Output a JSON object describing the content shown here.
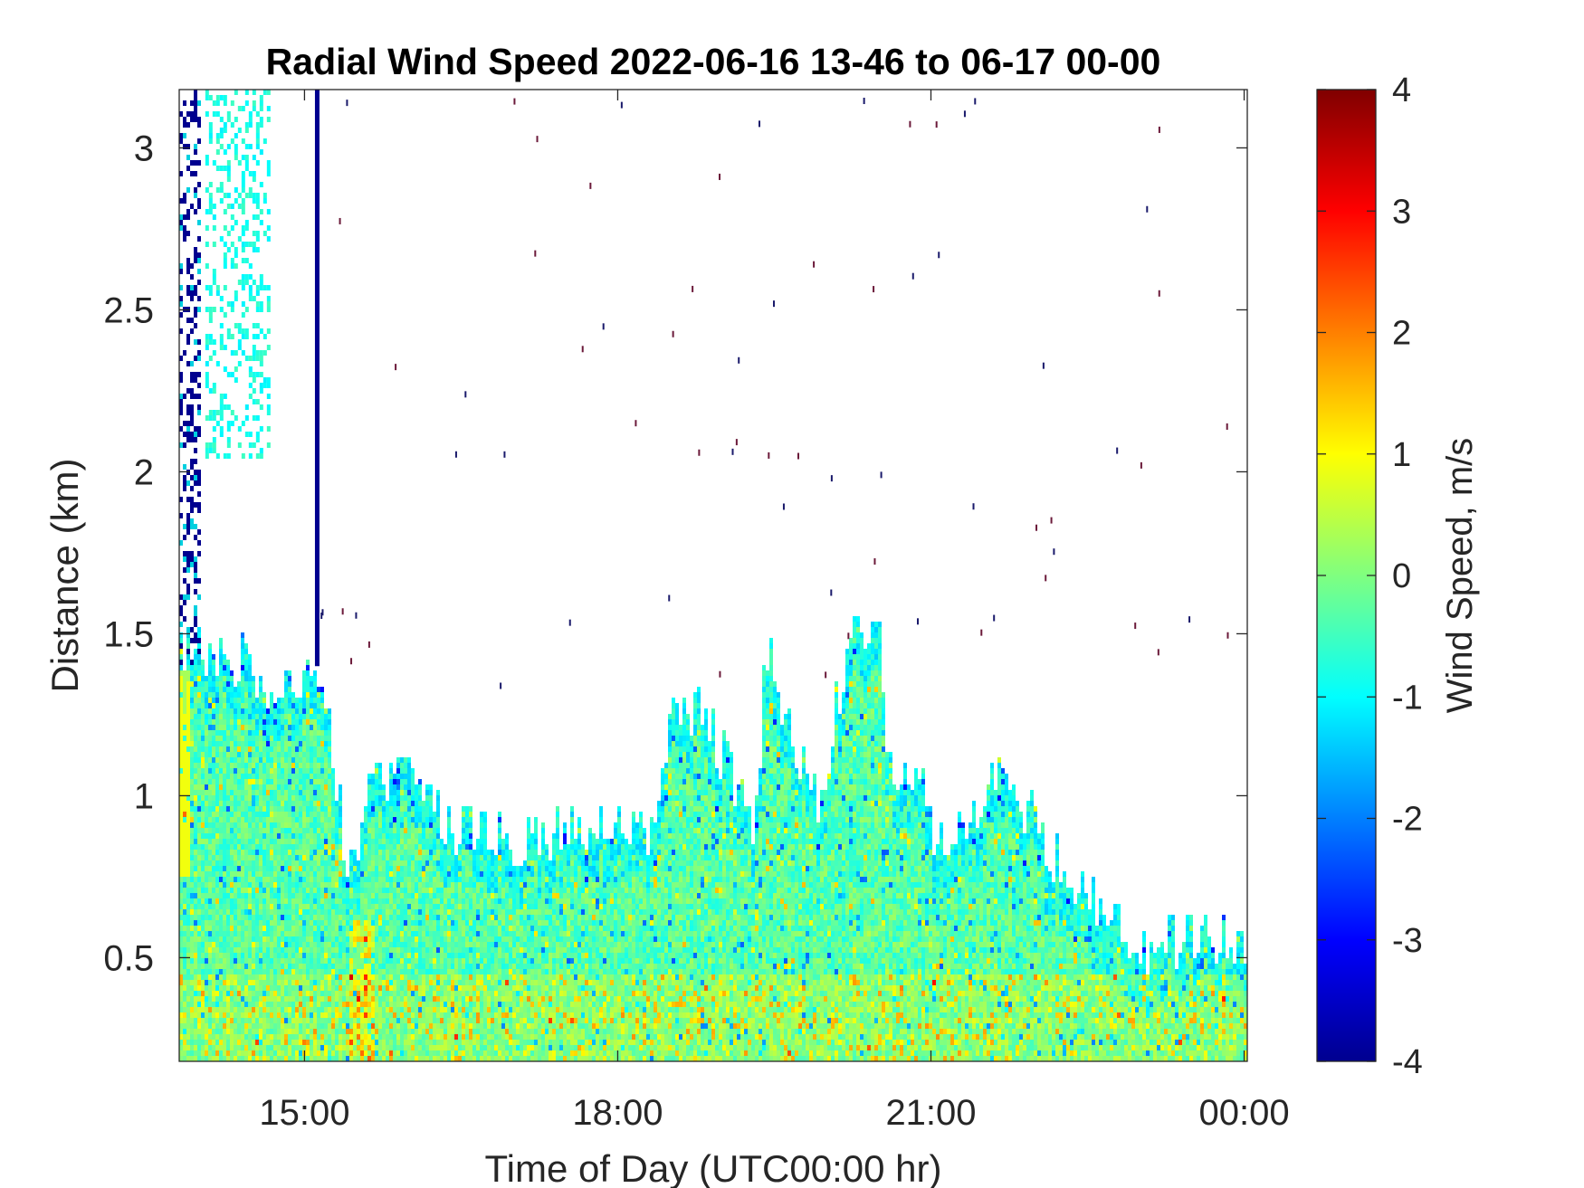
{
  "chart_data": {
    "type": "heatmap",
    "title": "Radial Wind Speed 2022-06-16 13-46 to 06-17 00-00",
    "xlabel": "Time of Day (UTC00:00 hr)",
    "ylabel": "Distance (km)",
    "x_ticks": [
      {
        "value": 15.0,
        "label": "15:00"
      },
      {
        "value": 18.0,
        "label": "18:00"
      },
      {
        "value": 21.0,
        "label": "21:00"
      },
      {
        "value": 24.0,
        "label": "00:00"
      }
    ],
    "y_ticks": [
      {
        "value": 0.5,
        "label": "0.5"
      },
      {
        "value": 1.0,
        "label": "1"
      },
      {
        "value": 1.5,
        "label": "1.5"
      },
      {
        "value": 2.0,
        "label": "2"
      },
      {
        "value": 2.5,
        "label": "2.5"
      },
      {
        "value": 3.0,
        "label": "3"
      }
    ],
    "xlim": [
      13.8,
      24.03
    ],
    "ylim": [
      0.18,
      3.18
    ],
    "colorbar": {
      "label": "Wind Speed, m/s",
      "clim": [
        -4,
        4
      ],
      "colormap": "jet",
      "ticks": [
        {
          "value": 4,
          "label": "4"
        },
        {
          "value": 3,
          "label": "3"
        },
        {
          "value": 2,
          "label": "2"
        },
        {
          "value": 1,
          "label": "1"
        },
        {
          "value": 0,
          "label": "0"
        },
        {
          "value": -1,
          "label": "-1"
        },
        {
          "value": -2,
          "label": "-2"
        },
        {
          "value": -3,
          "label": "-3"
        },
        {
          "value": -4,
          "label": "-4"
        }
      ]
    },
    "grid": false,
    "data_top_profile": [
      {
        "x": 13.8,
        "y": 1.42
      },
      {
        "x": 14.45,
        "y": 1.42
      },
      {
        "x": 14.55,
        "y": 1.3
      },
      {
        "x": 14.9,
        "y": 1.38
      },
      {
        "x": 15.2,
        "y": 1.3
      },
      {
        "x": 15.4,
        "y": 0.75
      },
      {
        "x": 15.65,
        "y": 1.05
      },
      {
        "x": 16.0,
        "y": 1.1
      },
      {
        "x": 16.4,
        "y": 0.9
      },
      {
        "x": 17.0,
        "y": 0.85
      },
      {
        "x": 17.6,
        "y": 0.88
      },
      {
        "x": 18.3,
        "y": 0.85
      },
      {
        "x": 18.5,
        "y": 1.3
      },
      {
        "x": 18.8,
        "y": 1.25
      },
      {
        "x": 19.3,
        "y": 0.9
      },
      {
        "x": 19.4,
        "y": 1.45
      },
      {
        "x": 19.9,
        "y": 0.95
      },
      {
        "x": 20.2,
        "y": 1.48
      },
      {
        "x": 20.5,
        "y": 1.45
      },
      {
        "x": 20.6,
        "y": 1.05
      },
      {
        "x": 20.9,
        "y": 1.1
      },
      {
        "x": 21.0,
        "y": 0.85
      },
      {
        "x": 21.4,
        "y": 0.92
      },
      {
        "x": 21.6,
        "y": 1.05
      },
      {
        "x": 21.9,
        "y": 0.95
      },
      {
        "x": 22.3,
        "y": 0.75
      },
      {
        "x": 22.8,
        "y": 0.6
      },
      {
        "x": 23.0,
        "y": 0.52
      },
      {
        "x": 23.3,
        "y": 0.55
      },
      {
        "x": 23.6,
        "y": 0.55
      },
      {
        "x": 24.03,
        "y": 0.52
      }
    ],
    "colors": {
      "axis": "#262626",
      "background": "#ffffff"
    }
  }
}
